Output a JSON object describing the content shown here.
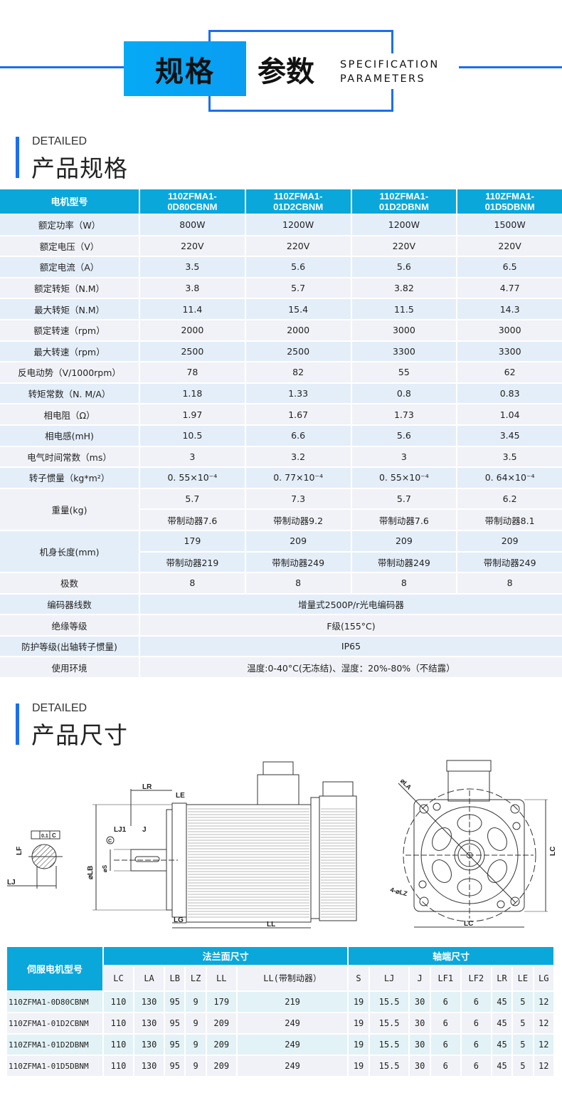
{
  "header": {
    "title_a": "规格",
    "title_b": "参数",
    "sub1": "SPECIFICATION",
    "sub2": "PARAMETERS"
  },
  "colors": {
    "accent": "#1a6ff0",
    "table_header": "#0aa7db"
  },
  "section1": {
    "eyebrow": "DETAILED",
    "title": "产品规格"
  },
  "spec_table": {
    "corner": "电机型号",
    "models": [
      [
        "110ZFMA1-",
        "0D80CBNM"
      ],
      [
        "110ZFMA1-",
        "01D2CBNM"
      ],
      [
        "110ZFMA1-",
        "01D2DBNM"
      ],
      [
        "110ZFMA1-",
        "01D5DBNM"
      ]
    ],
    "rows": [
      {
        "label": "额定功率（W）",
        "values": [
          "800W",
          "1200W",
          "1200W",
          "1500W"
        ]
      },
      {
        "label": "额定电压（V）",
        "values": [
          "220V",
          "220V",
          "220V",
          "220V"
        ]
      },
      {
        "label": "额定电流（A）",
        "values": [
          "3.5",
          "5.6",
          "5.6",
          "6.5"
        ]
      },
      {
        "label": "额定转矩（N.M）",
        "values": [
          "3.8",
          "5.7",
          "3.82",
          "4.77"
        ]
      },
      {
        "label": "最大转矩（N.M）",
        "values": [
          "11.4",
          "15.4",
          "11.5",
          "14.3"
        ]
      },
      {
        "label": "额定转速（rpm）",
        "values": [
          "2000",
          "2000",
          "3000",
          "3000"
        ]
      },
      {
        "label": "最大转速（rpm）",
        "values": [
          "2500",
          "2500",
          "3300",
          "3300"
        ]
      },
      {
        "label": "反电动势（V/1000rpm）",
        "values": [
          "78",
          "82",
          "55",
          "62"
        ]
      },
      {
        "label": "转矩常数（N. M/A）",
        "values": [
          "1.18",
          "1.33",
          "0.8",
          "0.83"
        ]
      },
      {
        "label": "相电阻（Ω）",
        "values": [
          "1.97",
          "1.67",
          "1.73",
          "1.04"
        ]
      },
      {
        "label": "相电感(mH)",
        "values": [
          "10.5",
          "6.6",
          "5.6",
          "3.45"
        ]
      },
      {
        "label": "电气时间常数（ms）",
        "values": [
          "3",
          "3.2",
          "3",
          "3.5"
        ]
      },
      {
        "label": "转子惯量（kg*m²）",
        "values": [
          "0. 55×10⁻⁴",
          "0. 77×10⁻⁴",
          "0. 55×10⁻⁴",
          "0. 64×10⁻⁴"
        ]
      },
      {
        "label": "重量(kg)",
        "values": [
          "5.7",
          "7.3",
          "5.7",
          "6.2"
        ],
        "values2": [
          "带制动器7.6",
          "带制动器9.2",
          "带制动器7.6",
          "带制动器8.1"
        ]
      },
      {
        "label": "机身长度(mm)",
        "values": [
          "179",
          "209",
          "209",
          "209"
        ],
        "values2": [
          "带制动器219",
          "带制动器249",
          "带制动器249",
          "带制动器249"
        ]
      },
      {
        "label": "极数",
        "values": [
          "8",
          "8",
          "8",
          "8"
        ]
      },
      {
        "label": "编码器线数",
        "merged": "增量式2500P/r光电编码器"
      },
      {
        "label": "绝缘等级",
        "merged": "F级(155°C)"
      },
      {
        "label": "防护等级(出轴转子惯量)",
        "merged": "IP65"
      },
      {
        "label": "使用环境",
        "merged": "温度:0-40°C(无冻结)、湿度：20%-80%（不结露）"
      }
    ]
  },
  "section2": {
    "eyebrow": "DETAILED",
    "title": "产品尺寸"
  },
  "drawing": {
    "LR": "LR",
    "LE": "LE",
    "LJ1": "LJ1",
    "J": "J",
    "LB": "⌀LB",
    "S": "⌀S",
    "LG": "LG",
    "LL": "LL",
    "LF": "LF",
    "LJ": "LJ",
    "C": "C",
    "LA": "⌀LA",
    "LZ": "4-⌀LZ",
    "LC": "LC",
    "tol": "0.1"
  },
  "dim_table": {
    "model_header": "伺服电机型号",
    "group1": "法兰面尺寸",
    "group2": "轴端尺寸",
    "columns": [
      "LC",
      "LA",
      "LB",
      "LZ",
      "LL",
      "LL(带制动器）",
      "S",
      "LJ",
      "J",
      "LF1",
      "LF2",
      "LR",
      "LE",
      "LG"
    ],
    "rows": [
      {
        "model": "110ZFMA1-0D80CBNM",
        "values": [
          "110",
          "130",
          "95",
          "9",
          "179",
          "219",
          "19",
          "15.5",
          "30",
          "6",
          "6",
          "45",
          "5",
          "12"
        ]
      },
      {
        "model": "110ZFMA1-01D2CBNM",
        "values": [
          "110",
          "130",
          "95",
          "9",
          "209",
          "249",
          "19",
          "15.5",
          "30",
          "6",
          "6",
          "45",
          "5",
          "12"
        ]
      },
      {
        "model": "110ZFMA1-01D2DBNM",
        "values": [
          "110",
          "130",
          "95",
          "9",
          "209",
          "249",
          "19",
          "15.5",
          "30",
          "6",
          "6",
          "45",
          "5",
          "12"
        ]
      },
      {
        "model": "110ZFMA1-01D5DBNM",
        "values": [
          "110",
          "130",
          "95",
          "9",
          "209",
          "249",
          "19",
          "15.5",
          "30",
          "6",
          "6",
          "45",
          "5",
          "12"
        ]
      }
    ]
  }
}
